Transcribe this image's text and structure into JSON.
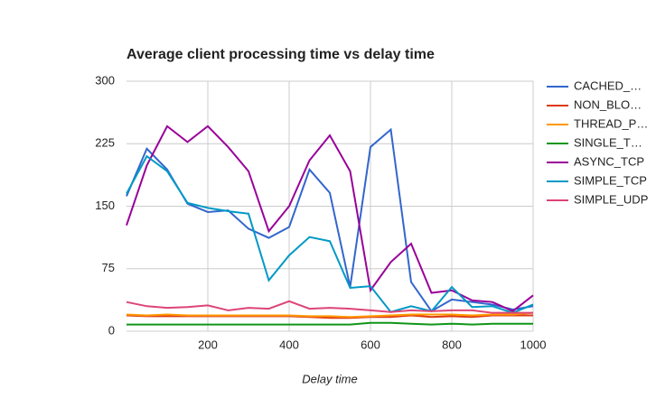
{
  "chart_data": {
    "type": "line",
    "title": "Average client processing time vs delay time",
    "x_label": "Delay time",
    "x": [
      0,
      50,
      100,
      150,
      200,
      250,
      300,
      350,
      400,
      450,
      500,
      550,
      600,
      650,
      700,
      750,
      800,
      850,
      900,
      950,
      1000
    ],
    "xlim": [
      0,
      1000
    ],
    "xticks": [
      200,
      400,
      600,
      800,
      1000
    ],
    "ylim": [
      0,
      300
    ],
    "yticks": [
      0,
      75,
      150,
      225,
      300
    ],
    "grid": true,
    "legend": "right",
    "series": [
      {
        "name": "CACHED_…",
        "color": "#3366cc",
        "values": [
          162,
          219,
          194,
          153,
          143,
          145,
          123,
          112,
          125,
          194,
          166,
          53,
          221,
          242,
          59,
          24,
          38,
          35,
          32,
          26,
          30
        ]
      },
      {
        "name": "NON_BLO…",
        "color": "#dc3912",
        "values": [
          19,
          18,
          18,
          18,
          18,
          18,
          18,
          18,
          18,
          17,
          16,
          16,
          17,
          17,
          19,
          17,
          18,
          17,
          19,
          19,
          19
        ]
      },
      {
        "name": "THREAD_P…",
        "color": "#ff9900",
        "values": [
          20,
          19,
          20,
          19,
          19,
          19,
          19,
          19,
          19,
          18,
          18,
          17,
          18,
          19,
          20,
          20,
          20,
          19,
          20,
          20,
          22
        ]
      },
      {
        "name": "SINGLE_T…",
        "color": "#109618",
        "values": [
          8,
          8,
          8,
          8,
          8,
          8,
          8,
          8,
          8,
          8,
          8,
          8,
          10,
          10,
          9,
          8,
          9,
          8,
          9,
          9,
          9
        ]
      },
      {
        "name": "ASYNC_TCP",
        "color": "#990099",
        "values": [
          127,
          199,
          246,
          227,
          246,
          221,
          192,
          120,
          150,
          205,
          235,
          192,
          49,
          83,
          105,
          46,
          49,
          37,
          35,
          24,
          43
        ]
      },
      {
        "name": "SIMPLE_TCP",
        "color": "#0099c6",
        "values": [
          165,
          210,
          192,
          154,
          148,
          144,
          141,
          61,
          91,
          113,
          108,
          52,
          54,
          23,
          30,
          24,
          53,
          29,
          30,
          22,
          32
        ]
      },
      {
        "name": "SIMPLE_UDP",
        "color": "#dd4477",
        "values": [
          35,
          30,
          28,
          29,
          31,
          25,
          28,
          27,
          36,
          27,
          28,
          27,
          25,
          23,
          25,
          24,
          25,
          25,
          22,
          22,
          22
        ]
      }
    ]
  }
}
